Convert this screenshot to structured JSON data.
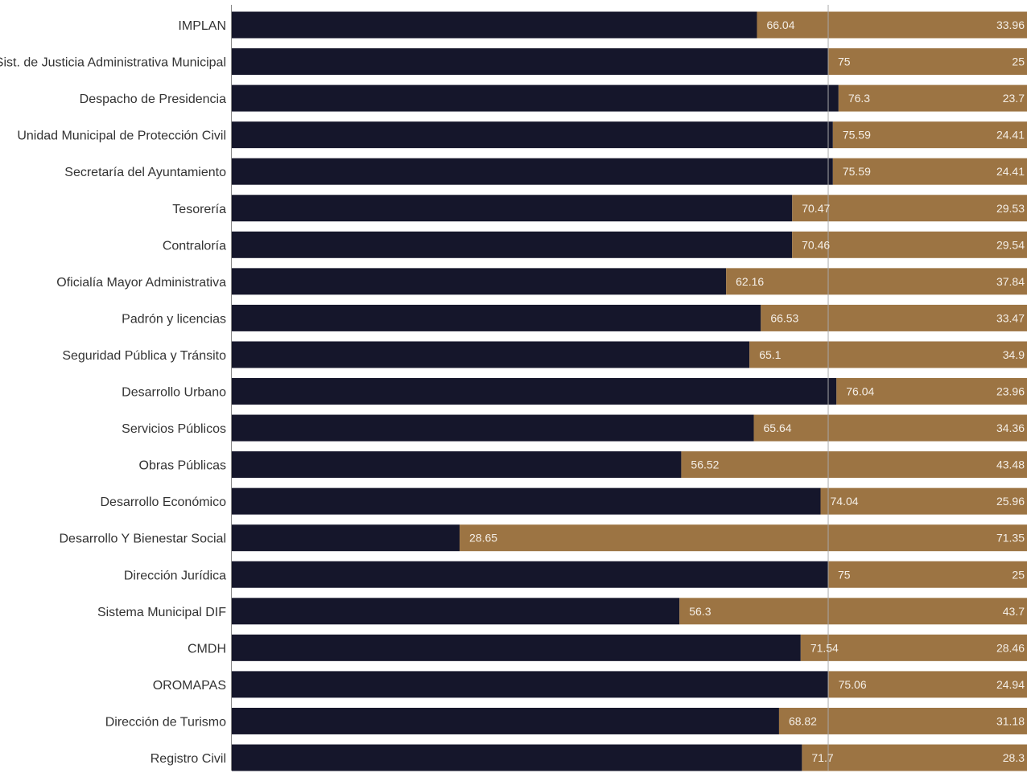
{
  "chart_data": {
    "type": "bar",
    "orientation": "horizontal",
    "stacked": true,
    "xlim": [
      0,
      100
    ],
    "grid": true,
    "legend": "none",
    "title": "",
    "xlabel": "",
    "ylabel": "",
    "categories": [
      "IMPLAN",
      "Sist. de Justicia Administrativa Municipal",
      "Despacho de Presidencia",
      "Unidad Municipal de Protección Civil",
      "Secretaría del Ayuntamiento",
      "Tesorería",
      "Contraloría",
      "Oficialía Mayor Administrativa",
      "Padrón y licencias",
      "Seguridad Pública y Tránsito",
      "Desarrollo Urbano",
      "Servicios Públicos",
      "Obras Públicas",
      "Desarrollo Económico",
      "Desarrollo Y Bienestar Social",
      "Dirección Jurídica",
      "Sistema Municipal DIF",
      "CMDH",
      "OROMAPAS",
      "Dirección de Turismo",
      "Registro Civil"
    ],
    "series": [
      {
        "color": "#15162b",
        "values": [
          66.04,
          75,
          76.3,
          75.59,
          75.59,
          70.47,
          70.46,
          62.16,
          66.53,
          65.1,
          76.04,
          65.64,
          56.52,
          74.04,
          28.65,
          75,
          56.3,
          71.54,
          75.06,
          68.82,
          71.7
        ],
        "labels": [
          "66.04",
          "75",
          "76.3",
          "75.59",
          "75.59",
          "70.47",
          "70.46",
          "62.16",
          "66.53",
          "65.1",
          "76.04",
          "65.64",
          "56.52",
          "74.04",
          "28.65",
          "75",
          "56.3",
          "71.54",
          "75.06",
          "68.82",
          "71.7"
        ]
      },
      {
        "color": "#9c7443",
        "values": [
          33.96,
          25,
          23.7,
          24.41,
          24.41,
          29.53,
          29.54,
          37.84,
          33.47,
          34.9,
          23.96,
          34.36,
          43.48,
          25.96,
          71.35,
          25,
          43.7,
          28.46,
          24.94,
          31.18,
          28.3
        ],
        "labels": [
          "33.96",
          "25",
          "23.7",
          "24.41",
          "24.41",
          "29.53",
          "29.54",
          "37.84",
          "33.47",
          "34.9",
          "23.96",
          "34.36",
          "43.48",
          "25.96",
          "71.35",
          "25",
          "43.7",
          "28.46",
          "24.94",
          "31.18",
          "28.3"
        ]
      }
    ]
  }
}
